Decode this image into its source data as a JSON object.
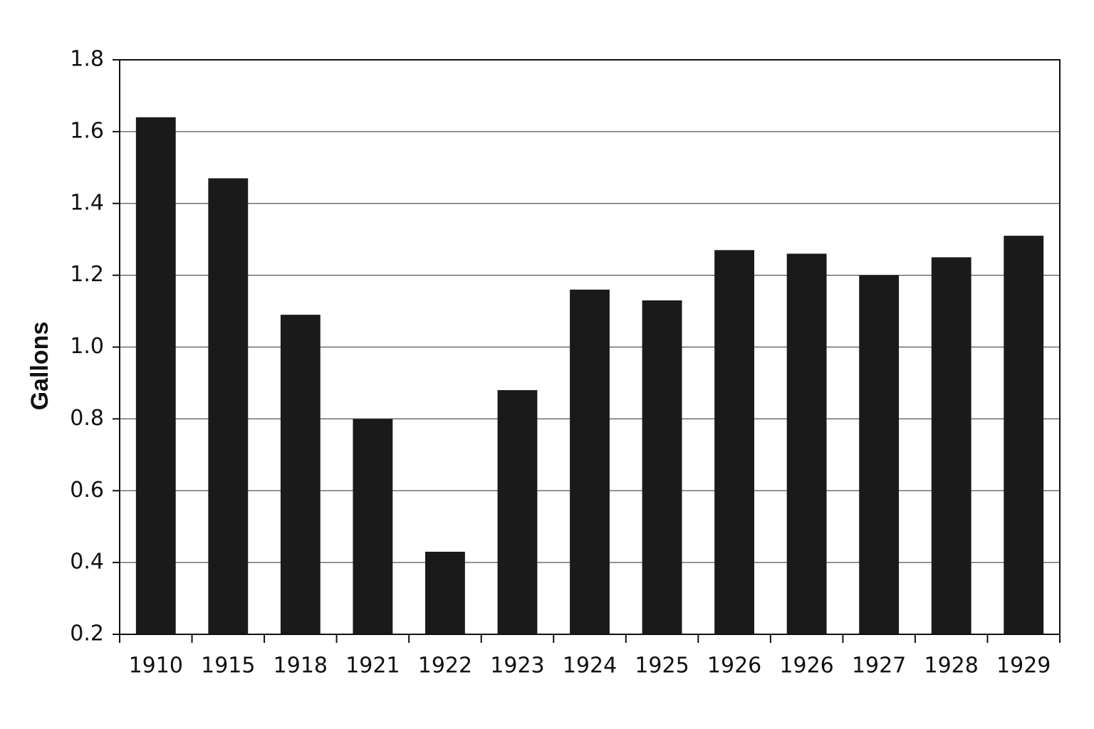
{
  "chart_data": {
    "type": "bar",
    "y_label": "Gallons",
    "categories": [
      "1910",
      "1915",
      "1918",
      "1921",
      "1922",
      "1923",
      "1924",
      "1925",
      "1926",
      "1926",
      "1927",
      "1928",
      "1929"
    ],
    "values": [
      1.64,
      1.47,
      1.09,
      0.8,
      0.43,
      0.88,
      1.16,
      1.13,
      1.27,
      1.26,
      1.2,
      1.25,
      1.31
    ],
    "color": "#1a1a1a",
    "ylim": [
      0.2,
      1.8
    ],
    "yticks": [
      0.2,
      0.4,
      0.6,
      0.8,
      {
        "value": 1,
        "label": "1.0"
      },
      1.2,
      1.4,
      1.6,
      1.8
    ],
    "grid": true
  }
}
